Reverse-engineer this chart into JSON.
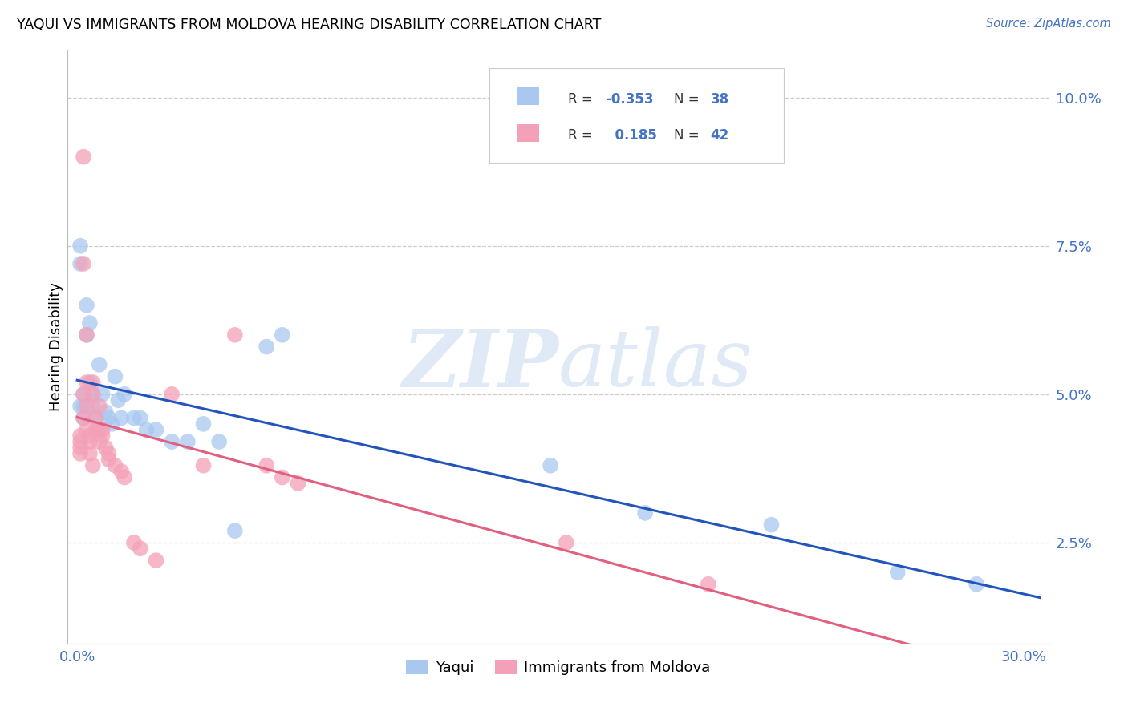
{
  "title": "YAQUI VS IMMIGRANTS FROM MOLDOVA HEARING DISABILITY CORRELATION CHART",
  "source": "Source: ZipAtlas.com",
  "xlim": [
    0.0,
    0.305
  ],
  "ylim": [
    0.008,
    0.107
  ],
  "yaqui_R": -0.353,
  "yaqui_N": 38,
  "moldova_R": 0.185,
  "moldova_N": 42,
  "yaqui_color": "#A8C8F0",
  "moldova_color": "#F4A0B8",
  "yaqui_line_color": "#2255BB",
  "moldova_line_color": "#E06080",
  "watermark_color": "#C8D8F0",
  "ylabel": "Hearing Disability",
  "legend_label_yaqui": "Yaqui",
  "legend_label_moldova": "Immigrants from Moldova",
  "yaqui_x": [
    0.001,
    0.001,
    0.001,
    0.002,
    0.002,
    0.002,
    0.003,
    0.003,
    0.004,
    0.004,
    0.005,
    0.005,
    0.006,
    0.007,
    0.008,
    0.009,
    0.01,
    0.011,
    0.012,
    0.013,
    0.014,
    0.015,
    0.018,
    0.02,
    0.022,
    0.025,
    0.03,
    0.035,
    0.04,
    0.045,
    0.05,
    0.06,
    0.065,
    0.15,
    0.18,
    0.22,
    0.26,
    0.285
  ],
  "yaqui_y": [
    0.048,
    0.075,
    0.072,
    0.05,
    0.048,
    0.046,
    0.065,
    0.06,
    0.062,
    0.052,
    0.05,
    0.048,
    0.046,
    0.055,
    0.05,
    0.047,
    0.046,
    0.045,
    0.053,
    0.049,
    0.046,
    0.05,
    0.046,
    0.046,
    0.044,
    0.044,
    0.042,
    0.042,
    0.045,
    0.042,
    0.027,
    0.058,
    0.06,
    0.038,
    0.03,
    0.028,
    0.02,
    0.018
  ],
  "moldova_x": [
    0.001,
    0.001,
    0.001,
    0.001,
    0.002,
    0.002,
    0.002,
    0.002,
    0.003,
    0.003,
    0.003,
    0.003,
    0.004,
    0.004,
    0.004,
    0.005,
    0.005,
    0.005,
    0.006,
    0.006,
    0.007,
    0.007,
    0.007,
    0.008,
    0.008,
    0.009,
    0.01,
    0.01,
    0.012,
    0.014,
    0.015,
    0.018,
    0.02,
    0.025,
    0.03,
    0.04,
    0.05,
    0.06,
    0.065,
    0.07,
    0.155,
    0.2
  ],
  "moldova_y": [
    0.043,
    0.042,
    0.041,
    0.04,
    0.09,
    0.072,
    0.05,
    0.046,
    0.06,
    0.052,
    0.048,
    0.044,
    0.043,
    0.042,
    0.04,
    0.052,
    0.05,
    0.038,
    0.046,
    0.044,
    0.048,
    0.044,
    0.042,
    0.044,
    0.043,
    0.041,
    0.04,
    0.039,
    0.038,
    0.037,
    0.036,
    0.025,
    0.024,
    0.022,
    0.05,
    0.038,
    0.06,
    0.038,
    0.036,
    0.035,
    0.025,
    0.018
  ],
  "x_ticks": [
    0.0,
    0.05,
    0.1,
    0.15,
    0.2,
    0.25,
    0.3
  ],
  "x_tick_labels": [
    "0.0%",
    "",
    "",
    "",
    "",
    "",
    "30.0%"
  ],
  "y_ticks": [
    0.025,
    0.05,
    0.075,
    0.1
  ],
  "y_tick_labels": [
    "2.5%",
    "5.0%",
    "7.5%",
    "10.0%"
  ]
}
